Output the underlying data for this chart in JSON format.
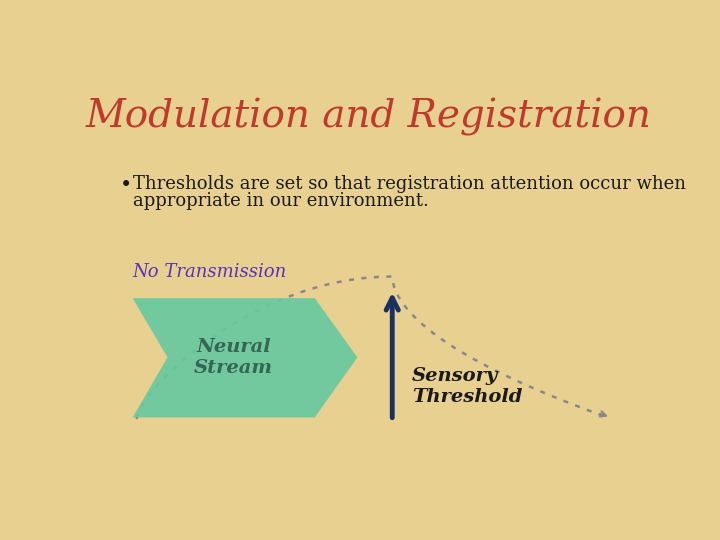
{
  "title": "Modulation and Registration",
  "title_color": "#c0392b",
  "title_fontsize": 28,
  "bullet_line1": "  Thresholds are set so that registration attention occur when",
  "bullet_line2": "  appropriate in our environment.",
  "bullet_color": "#1a1a1a",
  "bullet_fontsize": 13,
  "label_no_transmission": "No Transmission",
  "label_no_transmission_color": "#5533bb",
  "label_no_transmission_fontsize": 13,
  "neural_stream_label": "Neural\nStream",
  "neural_stream_color": "#66c9a0",
  "neural_stream_text_color": "#336655",
  "sensory_threshold_label": "Sensory\nThreshold",
  "sensory_threshold_color": "#1a1a1a",
  "arrow_color": "#1a3060",
  "dotted_line_color": "#888888",
  "background_color": "#e8d090"
}
